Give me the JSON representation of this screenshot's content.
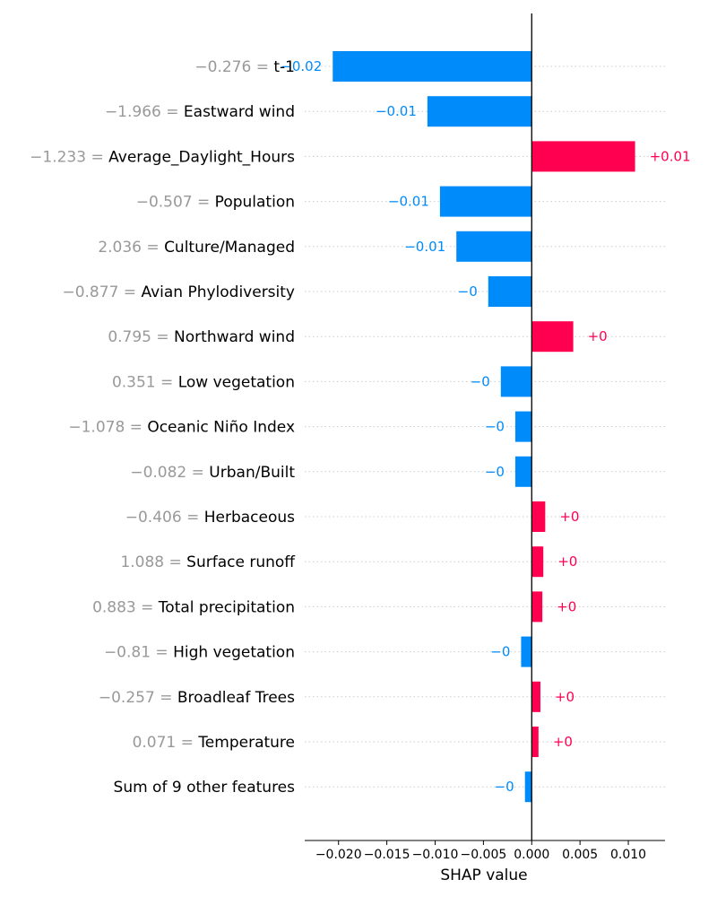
{
  "chart_data": {
    "type": "bar",
    "title": "",
    "xlabel": "SHAP value",
    "ylabel": "",
    "xlim": [
      -0.0235,
      0.0138
    ],
    "grid": "dotted horizontal guide lines",
    "colors": {
      "negative": "#008bfb",
      "positive": "#ff0051",
      "feature_value": "#999999",
      "axis": "#000000"
    },
    "x_ticks": [
      {
        "value": -0.02,
        "label": "−0.020"
      },
      {
        "value": -0.015,
        "label": "−0.015"
      },
      {
        "value": -0.01,
        "label": "−0.010"
      },
      {
        "value": -0.005,
        "label": "−0.005"
      },
      {
        "value": 0.0,
        "label": "0.000"
      },
      {
        "value": 0.005,
        "label": "0.005"
      },
      {
        "value": 0.01,
        "label": "0.010"
      }
    ],
    "features": [
      {
        "name": "t-1",
        "value_text": "−0.276 = ",
        "shap": -0.0206,
        "label": "−0.02"
      },
      {
        "name": "Eastward wind",
        "value_text": "−1.966 = ",
        "shap": -0.0108,
        "label": "−0.01"
      },
      {
        "name": "Average_Daylight_Hours",
        "value_text": "−1.233 = ",
        "shap": 0.0107,
        "label": "+0.01"
      },
      {
        "name": "Population",
        "value_text": "−0.507 = ",
        "shap": -0.0095,
        "label": "−0.01"
      },
      {
        "name": "Culture/Managed",
        "value_text": "2.036 = ",
        "shap": -0.0078,
        "label": "−0.01"
      },
      {
        "name": "Avian Phylodiversity",
        "value_text": "−0.877 = ",
        "shap": -0.0045,
        "label": "−0"
      },
      {
        "name": "Northward wind",
        "value_text": "0.795 = ",
        "shap": 0.0043,
        "label": "+0"
      },
      {
        "name": "Low vegetation",
        "value_text": "0.351 = ",
        "shap": -0.0032,
        "label": "−0"
      },
      {
        "name": "Oceanic Niño Index",
        "value_text": "−1.078 = ",
        "shap": -0.0017,
        "label": "−0"
      },
      {
        "name": "Urban/Built",
        "value_text": "−0.082 = ",
        "shap": -0.0017,
        "label": "−0"
      },
      {
        "name": "Herbaceous",
        "value_text": "−0.406 = ",
        "shap": 0.0014,
        "label": "+0"
      },
      {
        "name": "Surface runoff",
        "value_text": "1.088 = ",
        "shap": 0.0012,
        "label": "+0"
      },
      {
        "name": "Total precipitation",
        "value_text": "0.883 = ",
        "shap": 0.0011,
        "label": "+0"
      },
      {
        "name": "High vegetation",
        "value_text": "−0.81 = ",
        "shap": -0.0011,
        "label": "−0"
      },
      {
        "name": "Broadleaf Trees",
        "value_text": "−0.257 = ",
        "shap": 0.0009,
        "label": "+0"
      },
      {
        "name": "Temperature",
        "value_text": "0.071 = ",
        "shap": 0.0007,
        "label": "+0"
      },
      {
        "name": "Sum of 9 other features",
        "value_text": "",
        "shap": -0.0007,
        "label": "−0"
      }
    ]
  }
}
